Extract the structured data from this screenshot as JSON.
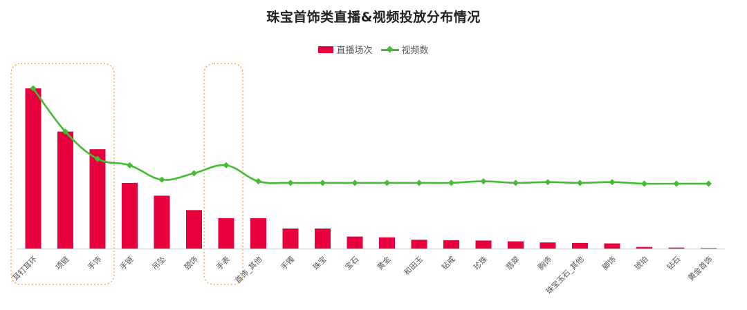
{
  "chart_data": {
    "type": "bar",
    "title": "珠宝首饰类直播&视频投放分布情况",
    "xlabel": "",
    "ylabel": "",
    "grid": false,
    "legend_position": "top-center",
    "categories": [
      "耳钉耳环",
      "项链",
      "手饰",
      "手链",
      "吊坠",
      "颈饰",
      "手表",
      "首饰_其他",
      "手镯",
      "珠宝",
      "宝石",
      "黄金",
      "和田玉",
      "钻戒",
      "珍珠",
      "翡翠",
      "胸饰",
      "珠宝玉石_其他",
      "脚饰",
      "琥珀",
      "钻石",
      "黄金首饰"
    ],
    "series": [
      {
        "name": "直播场次",
        "type": "bar",
        "color": "#E8003D",
        "values": [
          100,
          73,
          62,
          41,
          33,
          24,
          19,
          19,
          12.5,
          12.5,
          7.5,
          7,
          5.5,
          5.2,
          5,
          4.5,
          3.8,
          3.5,
          3.2,
          1,
          0.6,
          0.3
        ]
      },
      {
        "name": "视频数",
        "type": "line",
        "color": "#44BB33",
        "values": [
          100,
          73,
          56,
          52,
          43,
          47,
          52,
          42,
          41,
          41,
          41,
          41,
          41,
          41,
          42,
          41,
          41.5,
          41,
          41.5,
          40.5,
          40.5,
          40.5
        ]
      }
    ],
    "ylim": [
      0,
      110
    ],
    "highlights": [
      {
        "from": 0,
        "to": 2,
        "color": "#F0A050"
      },
      {
        "from": 6,
        "to": 6,
        "color": "#F0A050"
      }
    ]
  }
}
